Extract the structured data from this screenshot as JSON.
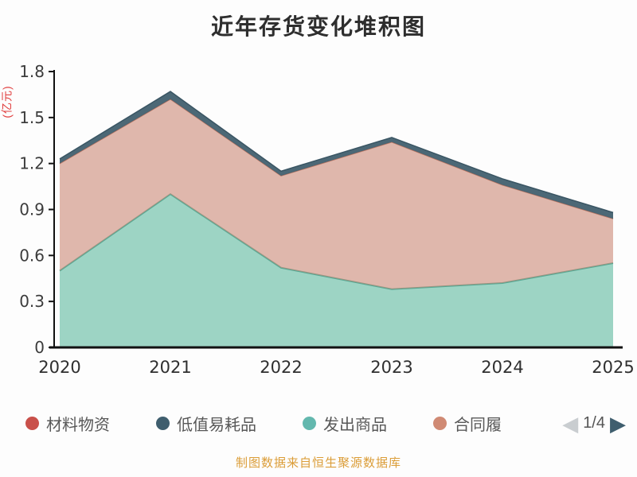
{
  "title": "近年存货变化堆积图",
  "y_axis_label": "(亿元)",
  "footer": "制图数据来自恒生聚源数据库",
  "legend": {
    "items": [
      {
        "label": "材料物资",
        "color": "#c9504a"
      },
      {
        "label": "低值易耗品",
        "color": "#3f5e6e"
      },
      {
        "label": "发出商品",
        "color": "#63b8ae"
      },
      {
        "label": "合同履",
        "color": "#d08a74"
      }
    ],
    "pagination": "1/4",
    "prev_icon": "◀",
    "next_icon": "▶"
  },
  "chart_data": {
    "type": "area",
    "stacked": true,
    "title": "近年存货变化堆积图",
    "ylabel": "(亿元)",
    "xlabel": "",
    "grid": false,
    "legend_position": "bottom",
    "x": [
      "2020",
      "2021",
      "2022",
      "2023",
      "2024",
      "2025"
    ],
    "ylim": [
      0,
      1.8
    ],
    "yticks": [
      "0",
      "0.3",
      "0.6",
      "0.9",
      "1.2",
      "1.5",
      "1.8"
    ],
    "series": [
      {
        "name": "材料物资",
        "values": [
          0,
          0,
          0,
          0,
          0,
          0
        ],
        "fill": "#c9504a",
        "opacity": 0.85,
        "stroke": "#c9504a",
        "stroke_width": 1
      },
      {
        "name": "发出商品",
        "values": [
          0.5,
          1.0,
          0.52,
          0.38,
          0.42,
          0.55
        ],
        "fill": "#7cc6b0",
        "opacity": 0.75,
        "stroke": "#57a894",
        "stroke_width": 2
      },
      {
        "name": "合同履",
        "values": [
          0.7,
          0.62,
          0.6,
          0.96,
          0.64,
          0.29
        ],
        "fill": "#cc8876",
        "opacity": 0.6,
        "stroke": "#b97663",
        "stroke_width": 1.5
      },
      {
        "name": "低值易耗品",
        "values": [
          0.03,
          0.05,
          0.03,
          0.03,
          0.04,
          0.04
        ],
        "fill": "#42606f",
        "opacity": 0.95,
        "stroke": "#3a5563",
        "stroke_width": 1.5
      }
    ]
  }
}
